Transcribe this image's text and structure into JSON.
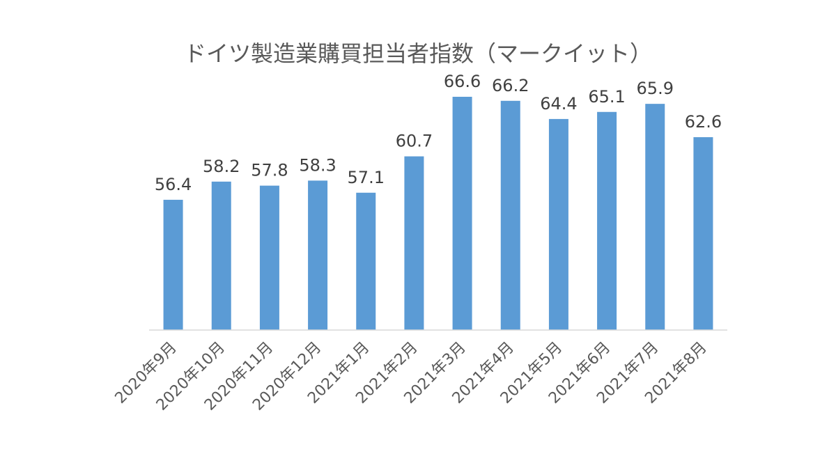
{
  "chart_data": {
    "type": "bar",
    "title": "ドイツ製造業購買担当者指数（マークイット）",
    "categories": [
      "2020年9月",
      "2020年10月",
      "2020年11月",
      "2020年12月",
      "2021年1月",
      "2021年2月",
      "2021年3月",
      "2021年4月",
      "2021年5月",
      "2021年6月",
      "2021年7月",
      "2021年8月"
    ],
    "values": [
      56.4,
      58.2,
      57.8,
      58.3,
      57.1,
      60.7,
      66.6,
      66.2,
      64.4,
      65.1,
      65.9,
      62.6
    ],
    "data_labels": [
      "56.4",
      "58.2",
      "57.8",
      "58.3",
      "57.1",
      "60.7",
      "66.6",
      "66.2",
      "64.4",
      "65.1",
      "65.9",
      "62.6"
    ],
    "xlabel": "",
    "ylabel": "",
    "ylim": [
      43.5,
      66.6
    ],
    "grid": false,
    "legend": "none",
    "colors": {
      "bar": "#5B9BD5",
      "axis": "#D9D9D9",
      "title_text": "#595959",
      "label_text": "#404040"
    }
  }
}
